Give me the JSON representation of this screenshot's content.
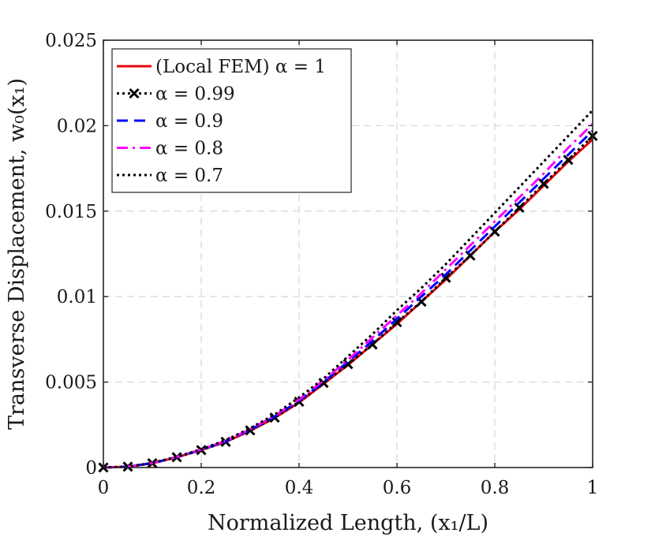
{
  "chart_data": {
    "type": "line",
    "xlabel": "Normalized Length, (x₁/L)",
    "ylabel": "Transverse Displacement, w₀(x₁)",
    "xlim": [
      0,
      1
    ],
    "ylim": [
      0,
      0.025
    ],
    "grid": true,
    "legend_position": "top-left",
    "x_ticks": [
      0,
      0.2,
      0.4,
      0.6,
      0.8,
      1
    ],
    "x_tick_labels": [
      "0",
      "0.2",
      "0.4",
      "0.6",
      "0.8",
      "1"
    ],
    "y_ticks": [
      0,
      0.005,
      0.01,
      0.015,
      0.02,
      0.025
    ],
    "y_tick_labels": [
      "0",
      "0.005",
      "0.01",
      "0.015",
      "0.02",
      "0.025"
    ],
    "x": [
      0,
      0.05,
      0.1,
      0.15,
      0.2,
      0.25,
      0.3,
      0.35,
      0.4,
      0.45,
      0.5,
      0.55,
      0.6,
      0.65,
      0.7,
      0.75,
      0.8,
      0.85,
      0.9,
      0.95,
      1.0
    ],
    "series": [
      {
        "name": "(Local FEM) α = 1",
        "color": "#e8000b",
        "style": "solid",
        "marker": "none",
        "values": [
          0,
          5e-05,
          0.00025,
          0.0006,
          0.00102,
          0.0015,
          0.00215,
          0.0029,
          0.0038,
          0.0049,
          0.006,
          0.0072,
          0.0084,
          0.0097,
          0.011,
          0.0124,
          0.0138,
          0.0151,
          0.0165,
          0.0179,
          0.0192
        ]
      },
      {
        "name": "α = 0.99",
        "color": "#000000",
        "style": "dotted",
        "marker": "x",
        "values": [
          0,
          5e-05,
          0.00025,
          0.0006,
          0.00102,
          0.0015,
          0.00217,
          0.00292,
          0.00385,
          0.00495,
          0.00605,
          0.0072,
          0.0085,
          0.0097,
          0.0111,
          0.0124,
          0.0138,
          0.0152,
          0.0166,
          0.018,
          0.0194
        ]
      },
      {
        "name": "α = 0.9",
        "color": "#0000ff",
        "style": "dashed",
        "marker": "none",
        "values": [
          0,
          5e-05,
          0.00026,
          0.00061,
          0.00104,
          0.00153,
          0.0022,
          0.00298,
          0.0039,
          0.005,
          0.0062,
          0.0074,
          0.0087,
          0.01,
          0.0113,
          0.0127,
          0.0141,
          0.0155,
          0.0169,
          0.0183,
          0.0197
        ]
      },
      {
        "name": "α = 0.8",
        "color": "#ff00ff",
        "style": "dashdot",
        "marker": "none",
        "values": [
          0,
          5e-05,
          0.00026,
          0.00062,
          0.00105,
          0.00156,
          0.00224,
          0.00303,
          0.00398,
          0.0051,
          0.0063,
          0.0076,
          0.0089,
          0.0102,
          0.0116,
          0.013,
          0.0144,
          0.0158,
          0.0172,
          0.0187,
          0.0201
        ]
      },
      {
        "name": "α = 0.7",
        "color": "#000000",
        "style": "dotted",
        "marker": "none",
        "values": [
          0,
          5e-05,
          0.00027,
          0.00063,
          0.00107,
          0.0016,
          0.0023,
          0.0031,
          0.0041,
          0.0052,
          0.0065,
          0.0078,
          0.0092,
          0.0105,
          0.0119,
          0.0134,
          0.0149,
          0.0164,
          0.0179,
          0.0194,
          0.0209
        ]
      }
    ]
  }
}
